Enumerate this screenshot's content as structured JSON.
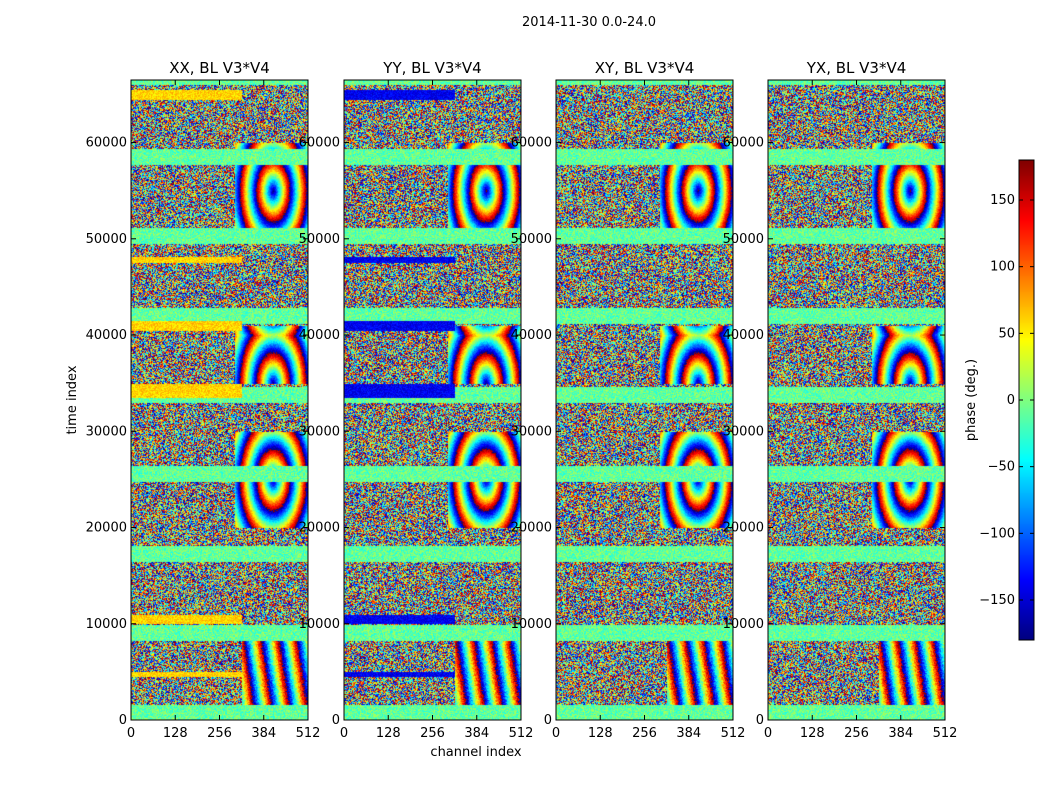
{
  "chart_data": {
    "type": "heatmap",
    "suptitle": "2014-11-30 0.0-24.0",
    "xlabel": "channel index",
    "ylabel": "time index",
    "xlim": [
      0,
      512
    ],
    "ylim": [
      0,
      66500
    ],
    "x_ticks": [
      0,
      128,
      256,
      384,
      512
    ],
    "y_ticks": [
      0,
      10000,
      20000,
      30000,
      40000,
      50000,
      60000
    ],
    "x_tick_labels": [
      "0",
      "128",
      "256",
      "384",
      "512"
    ],
    "y_tick_labels": [
      "0",
      "10000",
      "20000",
      "30000",
      "40000",
      "50000",
      "60000"
    ],
    "colormap": "jet",
    "panels": [
      {
        "title": "XX, BL V3*V4",
        "polarization": "XX",
        "bias_phase": 60,
        "coherent_bands": [
          [
            4500,
            5000
          ],
          [
            10000,
            11000
          ],
          [
            33500,
            35000
          ],
          [
            40500,
            41500
          ],
          [
            47500,
            48200
          ],
          [
            64500,
            65500
          ]
        ]
      },
      {
        "title": "YY, BL V3*V4",
        "polarization": "YY",
        "bias_phase": -140,
        "coherent_bands": [
          [
            4500,
            5000
          ],
          [
            10000,
            11000
          ],
          [
            33500,
            35000
          ],
          [
            40500,
            41500
          ],
          [
            47500,
            48200
          ],
          [
            64500,
            65500
          ]
        ]
      },
      {
        "title": "XY, BL V3*V4",
        "polarization": "XY",
        "bias_phase": -20,
        "coherent_bands": []
      },
      {
        "title": "YX, BL V3*V4",
        "polarization": "YX",
        "bias_phase": -20,
        "coherent_bands": []
      }
    ],
    "colorbar": {
      "label": "phase (deg.)",
      "range": [
        -180,
        180
      ],
      "ticks": [
        -150,
        -100,
        -50,
        0,
        50,
        100,
        150
      ],
      "tick_labels": [
        "−150",
        "−100",
        "−50",
        "0",
        "50",
        "100",
        "150"
      ]
    }
  }
}
